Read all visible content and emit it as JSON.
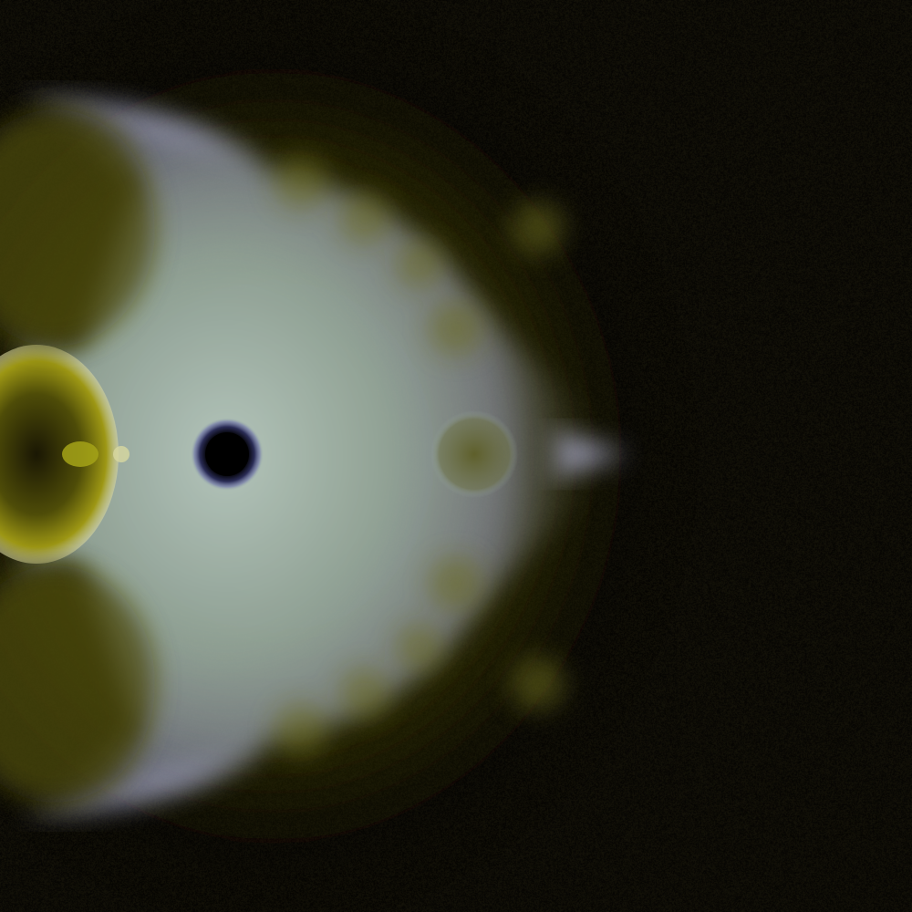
{
  "image": {
    "subject": "fractal-render",
    "colors": {
      "background": "#050402",
      "core_glow": "#c7d6cf",
      "inner_glow": "#8fa39a",
      "edge_white": "#c8cbe6",
      "violet_fringe": "#8e8fc6",
      "olive": "#6c6a0f",
      "olive_bright": "#b8b218",
      "dark_olive": "#2b2a08",
      "center_hole": "#000000",
      "hole_ring": "#4a4f8a"
    }
  }
}
